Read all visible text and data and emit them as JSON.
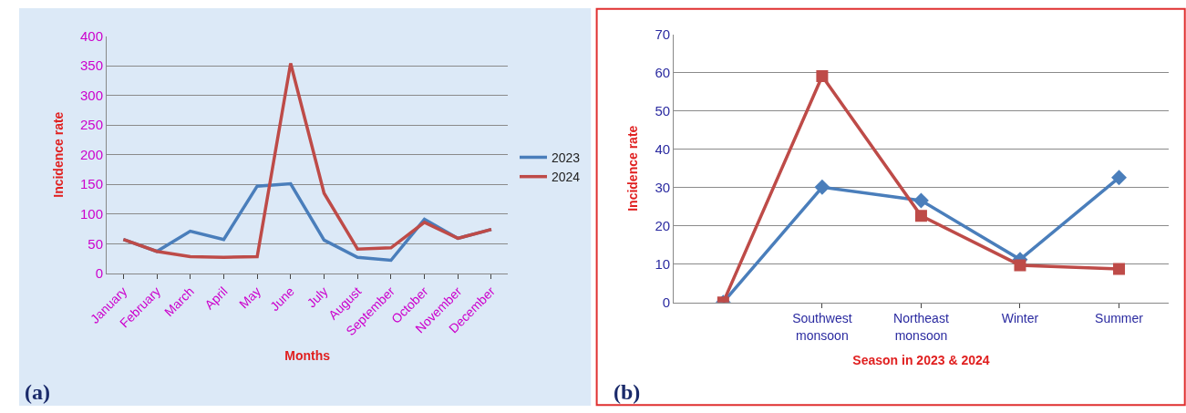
{
  "chart_data": [
    {
      "type": "line",
      "categories": [
        "January",
        "February",
        "March",
        "April",
        "May",
        "June",
        "July",
        "August",
        "September",
        "October",
        "November",
        "December"
      ],
      "series": [
        {
          "name": "2023",
          "color": "#4a7ebb",
          "values": [
            57,
            37,
            71,
            57,
            147,
            151,
            56,
            27,
            22,
            91,
            59,
            74
          ]
        },
        {
          "name": "2024",
          "color": "#be4b48",
          "values": [
            57,
            37,
            28,
            27,
            28,
            354,
            135,
            41,
            43,
            86,
            59,
            74
          ]
        }
      ],
      "ylim": [
        0,
        400
      ],
      "yticks": [
        0,
        50,
        100,
        150,
        200,
        250,
        300,
        350,
        400
      ],
      "ylabel": "Incidence rate",
      "xlabel": "Months",
      "grid": "y",
      "legend": "right",
      "marker": "none",
      "annotations": [
        "(a)"
      ]
    },
    {
      "type": "line",
      "categories": [
        null,
        "Southwest monsoon",
        "Northeast monsoon",
        "Winter",
        "Summer"
      ],
      "series": [
        {
          "color": "#4a7ebb",
          "marker": "diamond",
          "values": [
            0,
            30.1,
            26.6,
            11.2,
            32.6
          ]
        },
        {
          "color": "#be4b48",
          "marker": "square",
          "values": [
            0,
            59.1,
            22.6,
            9.7,
            8.7
          ]
        }
      ],
      "ylim": [
        0,
        70
      ],
      "yticks": [
        0,
        10,
        20,
        30,
        40,
        50,
        60,
        70
      ],
      "ylabel": "Incidence rate",
      "xlabel": "Season in 2023 & 2024",
      "grid": "y",
      "annotations": [
        "(b)"
      ]
    }
  ]
}
